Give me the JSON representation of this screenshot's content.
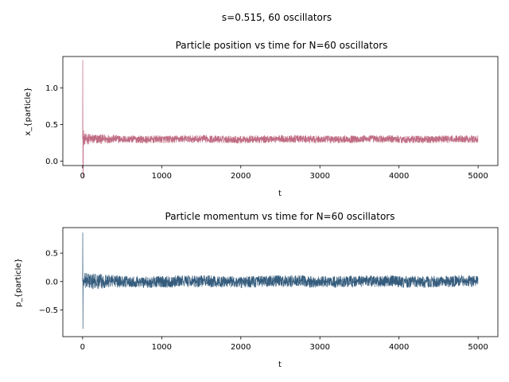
{
  "suptitle": "s=0.515, 60 oscillators",
  "chart_data": [
    {
      "type": "line",
      "title": "Particle position vs time for N=60 oscillators",
      "xlabel": "t",
      "ylabel": "x_{particle}",
      "xlim": [
        -250,
        5250
      ],
      "ylim": [
        -0.06,
        1.43
      ],
      "xticks": [
        0,
        1000,
        2000,
        3000,
        4000,
        5000
      ],
      "yticks": [
        0.0,
        0.5,
        1.0
      ],
      "ytick_labels": [
        "0.0",
        "0.5",
        "1.0"
      ],
      "color": "#c06c84",
      "grid": false,
      "series": [
        {
          "signal": {
            "t_start": 0,
            "t_end": 5000,
            "mean": 0.3,
            "band_halfwidth": 0.05,
            "initial_peak": 1.38,
            "initial_min": 0.02
          }
        }
      ]
    },
    {
      "type": "line",
      "title": "Particle momentum vs time for N=60 oscillators",
      "xlabel": "t",
      "ylabel": "p_{particle}",
      "xlim": [
        -250,
        5250
      ],
      "ylim": [
        -0.97,
        0.95
      ],
      "xticks": [
        0,
        1000,
        2000,
        3000,
        4000,
        5000
      ],
      "yticks": [
        -0.5,
        0.0,
        0.5
      ],
      "ytick_labels": [
        "−0.5",
        "0.0",
        "0.5"
      ],
      "color": "#355c7d",
      "grid": false,
      "series": [
        {
          "signal": {
            "t_start": 0,
            "t_end": 5000,
            "mean": 0.0,
            "band_halfwidth": 0.1,
            "initial_peak": 0.86,
            "initial_min": -0.83
          }
        }
      ]
    }
  ]
}
